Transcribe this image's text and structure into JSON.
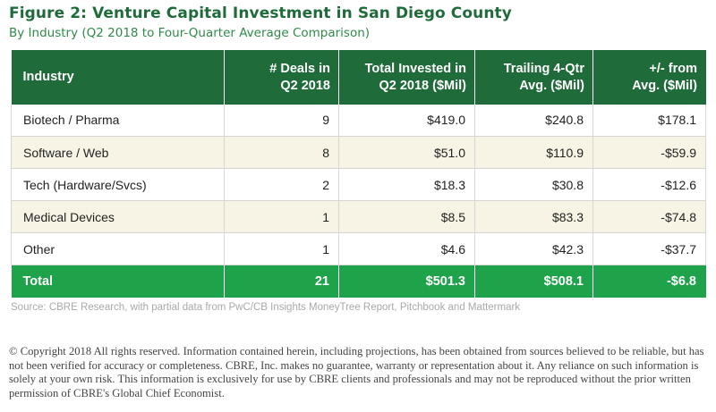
{
  "title": "Figure 2: Venture Capital Investment in San Diego County",
  "subtitle": "By Industry (Q2 2018 to Four-Quarter Average Comparison)",
  "table": {
    "headers": [
      {
        "line1": "Industry",
        "line2": ""
      },
      {
        "line1": "# Deals in",
        "line2": "Q2 2018"
      },
      {
        "line1": "Total Invested in",
        "line2": "Q2 2018 ($Mil)"
      },
      {
        "line1": "Trailing 4-Qtr",
        "line2": "Avg. ($Mil)"
      },
      {
        "line1": "+/- from",
        "line2": "Avg. ($Mil)"
      }
    ],
    "rows": [
      {
        "industry": "Biotech / Pharma",
        "deals": "9",
        "invested": "$419.0",
        "trailing": "$240.8",
        "diff": "$178.1"
      },
      {
        "industry": "Software / Web",
        "deals": "8",
        "invested": "$51.0",
        "trailing": "$110.9",
        "diff": "-$59.9"
      },
      {
        "industry": "Tech (Hardware/Svcs)",
        "deals": "2",
        "invested": "$18.3",
        "trailing": "$30.8",
        "diff": "-$12.6"
      },
      {
        "industry": "Medical Devices",
        "deals": "1",
        "invested": "$8.5",
        "trailing": "$83.3",
        "diff": "-$74.8"
      },
      {
        "industry": "Other",
        "deals": "1",
        "invested": "$4.6",
        "trailing": "$42.3",
        "diff": "-$37.7"
      }
    ],
    "total": {
      "industry": "Total",
      "deals": "21",
      "invested": "$501.3",
      "trailing": "$508.1",
      "diff": "-$6.8"
    }
  },
  "source": "Source: CBRE Research, with partial data from PwC/CB Insights MoneyTree Report, Pitchbook and Mattermark",
  "copyright": "© Copyright 2018 All rights reserved. Information contained herein, including projections, has been obtained from sources believed to be reliable, but has not been verified for accuracy or completeness. CBRE, Inc. makes no guarantee, warranty or representation about it. Any reliance on such information is solely at your own risk. This information is exclusively for use by CBRE clients and professionals and may not be reproduced without the prior written permission of CBRE's Global Chief Economist.",
  "colors": {
    "title": "#1f6b3a",
    "subtitle": "#2f8a4a",
    "header_bg": "#1f6b3a",
    "total_bg": "#1ea24a",
    "alt_row_bg": "#f7f4e6"
  }
}
